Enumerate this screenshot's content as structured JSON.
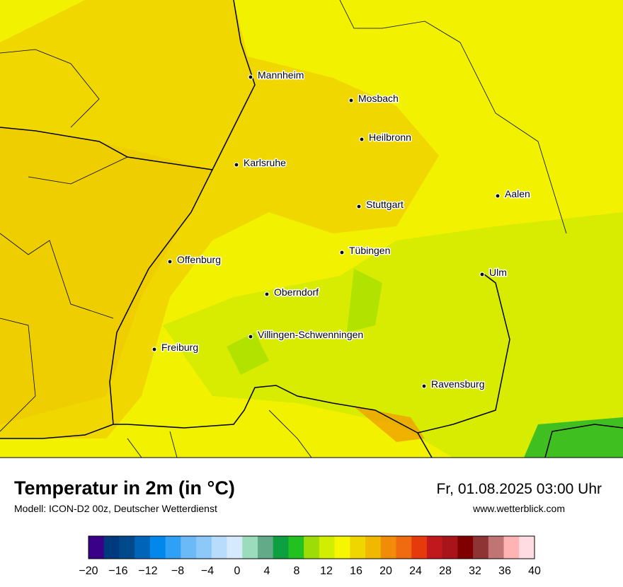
{
  "header": {
    "title": "Temperatur in 2m (in °C)",
    "subtitle": "Modell: ICON-D2 00z, Deutscher Wetterdienst",
    "datetime": "Fr, 01.08.2025 03:00 Uhr",
    "website": "www.wetterblick.com"
  },
  "map": {
    "cities": [
      "Mannheim",
      "Mosbach",
      "Heilbronn",
      "Karlsruhe",
      "Aalen",
      "Stuttgart",
      "Tübingen",
      "Offenburg",
      "Ulm",
      "Oberndorf",
      "Villingen-Schwenningen",
      "Freiburg",
      "Ravensburg"
    ],
    "colorbar": {
      "range": [
        -20,
        40
      ],
      "colors": [
        "#3a0088",
        "#003a7e",
        "#004a8c",
        "#0064b8",
        "#0088ea",
        "#2ea0f5",
        "#6cb9f7",
        "#8cc8f8",
        "#b8dcfb",
        "#d6eafd",
        "#9adcbc",
        "#62aa88",
        "#0ea040",
        "#22c020",
        "#9edc08",
        "#d2ee00",
        "#f6f600",
        "#f0d600",
        "#f0b800",
        "#f08c08",
        "#f06a10",
        "#e63a0c",
        "#c0181c",
        "#a8141a",
        "#800000",
        "#8e3434",
        "#c07474",
        "#ffb4b4",
        "#ffdce2"
      ],
      "ticks": [
        {
          "value": -20,
          "label": "−20"
        },
        {
          "value": -16,
          "label": "−16"
        },
        {
          "value": -12,
          "label": "−12"
        },
        {
          "value": -8,
          "label": "−8"
        },
        {
          "value": -4,
          "label": "−4"
        },
        0,
        4,
        8,
        12,
        16,
        20,
        24,
        28,
        32,
        36,
        40
      ]
    }
  }
}
